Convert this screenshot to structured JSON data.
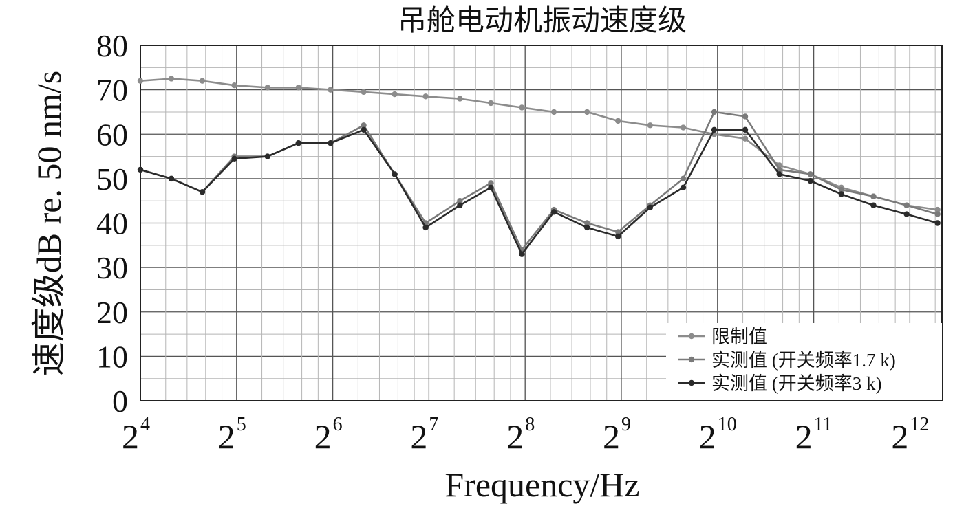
{
  "chart_data": {
    "type": "line",
    "title": "吊舱电动机振动速度级",
    "xlabel": "Frequency/Hz",
    "ylabel": "速度级dB re. 50 nm/s",
    "x_scale": "log2",
    "xlim": [
      16,
      5161
    ],
    "ylim": [
      0,
      80
    ],
    "yticks": [
      "0",
      "10",
      "20",
      "30",
      "40",
      "50",
      "60",
      "70",
      "80"
    ],
    "xticks": [
      {
        "base": "2",
        "exp": "4"
      },
      {
        "base": "2",
        "exp": "5"
      },
      {
        "base": "2",
        "exp": "6"
      },
      {
        "base": "2",
        "exp": "7"
      },
      {
        "base": "2",
        "exp": "8"
      },
      {
        "base": "2",
        "exp": "9"
      },
      {
        "base": "2",
        "exp": "10"
      },
      {
        "base": "2",
        "exp": "11"
      },
      {
        "base": "2",
        "exp": "12"
      }
    ],
    "grid": true,
    "legend_position": "bottom-right",
    "x": [
      16,
      20,
      25,
      31.5,
      40,
      50,
      63,
      80,
      100,
      125,
      160,
      200,
      250,
      315,
      400,
      500,
      630,
      800,
      1000,
      1250,
      1600,
      2000,
      2500,
      3150,
      4000,
      5000
    ],
    "series": [
      {
        "name": "限制值",
        "color": "#8c8c8c",
        "values": [
          72,
          72.5,
          72,
          71,
          70.5,
          70.5,
          70,
          69.5,
          69,
          68.5,
          68,
          67,
          66,
          65,
          65,
          63,
          62,
          61.5,
          60,
          59,
          53,
          51,
          48,
          46,
          44,
          43
        ]
      },
      {
        "name": "实测值 (开关频率1.7 k)",
        "color": "#7a7a7a",
        "values": [
          52,
          50,
          47,
          55,
          55,
          58,
          58,
          62,
          51,
          40,
          45,
          49,
          34,
          43,
          40,
          38,
          44,
          50,
          65,
          64,
          52,
          51,
          47.5,
          46,
          44,
          42
        ]
      },
      {
        "name": "实测值 (开关频率3 k)",
        "color": "#2b2b2b",
        "values": [
          52,
          50,
          47,
          54.5,
          55,
          58,
          58,
          61,
          51,
          39,
          44,
          48,
          33,
          42.5,
          39,
          37,
          43.5,
          48,
          61,
          61,
          51,
          49.5,
          46.5,
          44,
          42,
          40
        ]
      }
    ]
  }
}
